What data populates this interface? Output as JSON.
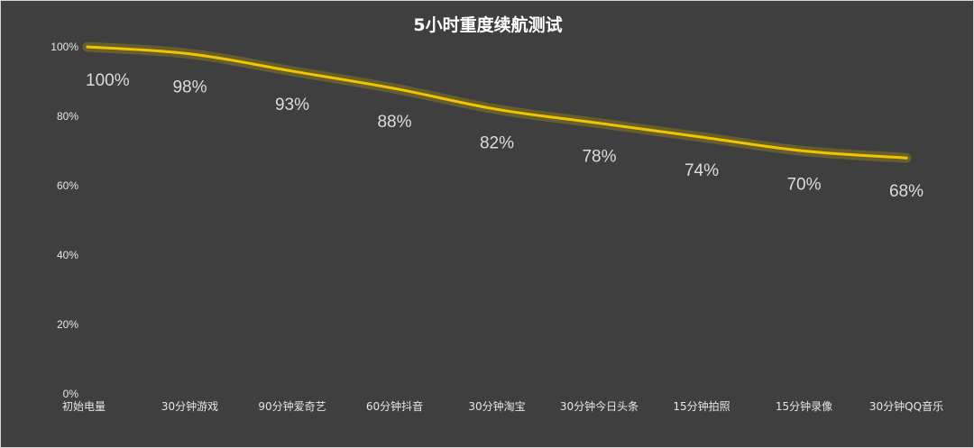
{
  "chart_data": {
    "type": "line",
    "title": "5小时重度续航测试",
    "xlabel": "",
    "ylabel": "",
    "categories": [
      "初始电量",
      "30分钟游戏",
      "90分钟爱奇艺",
      "60分钟抖音",
      "30分钟淘宝",
      "30分钟今日头条",
      "15分钟拍照",
      "15分钟录像",
      "30分钟QQ音乐"
    ],
    "series": [
      {
        "values": [
          100,
          98,
          93,
          88,
          82,
          78,
          74,
          70,
          68
        ],
        "data_labels": [
          "100%",
          "98%",
          "93%",
          "88%",
          "82%",
          "78%",
          "74%",
          "70%",
          "68%"
        ]
      }
    ],
    "ylim": [
      0,
      100
    ],
    "y_ticks": [
      "0%",
      "20%",
      "40%",
      "60%",
      "80%",
      "100%"
    ],
    "grid": false,
    "legend": "none",
    "colors": {
      "background": "#3f3f3f",
      "line": "#f5c400",
      "glow": "#c9b000",
      "text": "#e6e6e6"
    }
  }
}
